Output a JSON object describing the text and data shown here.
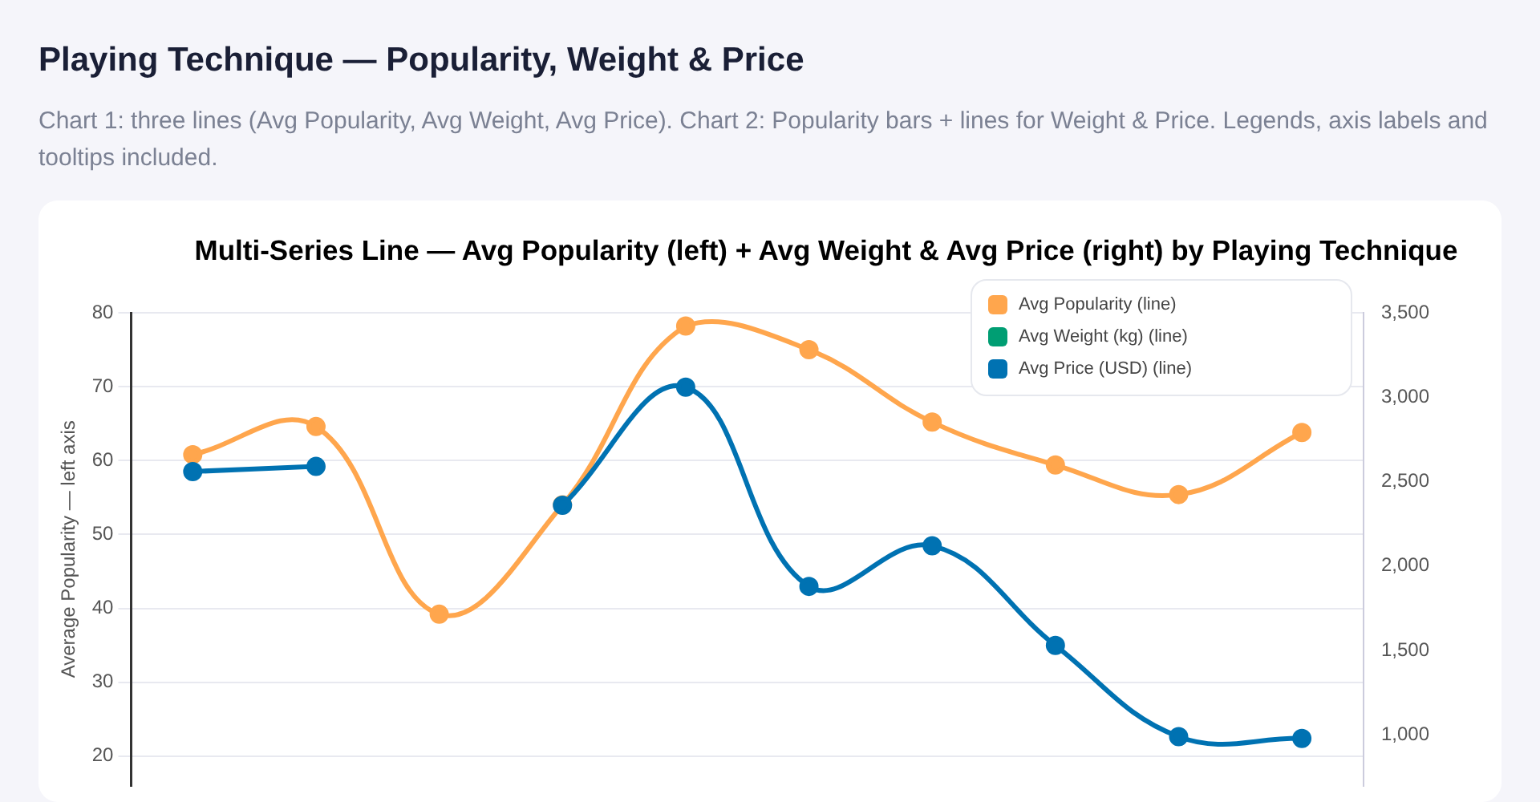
{
  "chart_data": {
    "type": "line",
    "title": "Playing Technique — Popularity, Weight & Price",
    "subtitle": "Chart 1: three lines (Avg Popularity, Avg Weight, Avg Price). Chart 2: Popularity bars + lines for Weight & Price. Legends, axis labels and tooltips included.",
    "annotations": [
      "Multi-Series Line — Avg Popularity (left) + Avg Weight & Avg Price (right) by Playing Technique"
    ],
    "ylabel": "Average Popularity — left axis",
    "categories": [
      null,
      null,
      null,
      null,
      null,
      null,
      null,
      null,
      null,
      null
    ],
    "series": [
      {
        "name": "Avg Popularity (line)",
        "color": "#ffa64d",
        "values": [
          60.8,
          64.6,
          39.2,
          54,
          78.2,
          75.0,
          65.2,
          59.4,
          55.4,
          63.8
        ]
      },
      {
        "name": "Avg Weight (kg) (line)",
        "color": "#009e73",
        "axis": "y2",
        "values": [
          null,
          null,
          null,
          null,
          null,
          null,
          null,
          null,
          null,
          null
        ]
      },
      {
        "name": "Avg Price (USD) (line)",
        "color": "#0072b2",
        "axis": "y2",
        "values": [
          2560,
          2590,
          null,
          2360,
          3060,
          1880,
          2120,
          1530,
          990,
          980
        ]
      }
    ],
    "ylim": [
      16,
      80
    ],
    "yticks": [
      20,
      30,
      40,
      50,
      60,
      70,
      80
    ],
    "y2lim": [
      700,
      3500
    ],
    "y2ticks": [
      {
        "value": 1000,
        "label": "1,000"
      },
      {
        "value": 1500,
        "label": "1,500"
      },
      {
        "value": 2000,
        "label": "2,000"
      },
      {
        "value": 2500,
        "label": "2,500"
      },
      {
        "value": 3000,
        "label": "3,000"
      },
      {
        "value": 3500,
        "label": "3,500"
      }
    ],
    "grid": "y",
    "legend": "top right",
    "marker": "circle",
    "line_style": "solid"
  }
}
